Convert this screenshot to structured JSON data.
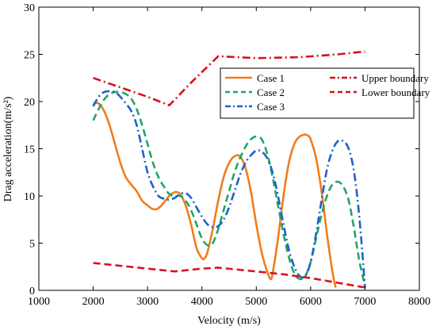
{
  "chart_data": {
    "type": "line",
    "title": "",
    "xlabel": "Velocity (m/s)",
    "ylabel": "Drag acceleration(m/s²)",
    "xlim": [
      1000,
      8000
    ],
    "ylim": [
      0,
      30
    ],
    "xticks": [
      1000,
      2000,
      3000,
      4000,
      5000,
      6000,
      7000,
      8000
    ],
    "yticks": [
      0,
      5,
      10,
      15,
      20,
      25,
      30
    ],
    "grid": false,
    "legend_placement": "top-right",
    "series": [
      {
        "name": "Case 1",
        "color": "#F07D1C",
        "dash": "solid",
        "x": [
          2000,
          2100,
          2200,
          2300,
          2400,
          2500,
          2600,
          2700,
          2800,
          2900,
          3000,
          3100,
          3200,
          3300,
          3400,
          3500,
          3600,
          3700,
          3800,
          3900,
          4000,
          4050,
          4100,
          4200,
          4300,
          4400,
          4500,
          4600,
          4700,
          4800,
          4900,
          5000,
          5100,
          5200,
          5260,
          5300,
          5400,
          5500,
          5600,
          5700,
          5800,
          5900,
          5950,
          6000,
          6100,
          6200,
          6300,
          6400,
          6460
        ],
        "y": [
          19.8,
          19.8,
          19.0,
          17.5,
          15.5,
          13.5,
          12.0,
          11.2,
          10.5,
          9.5,
          9.0,
          8.6,
          8.7,
          9.3,
          10.0,
          10.4,
          10.2,
          9.0,
          7.0,
          4.5,
          3.4,
          3.4,
          4.0,
          6.5,
          9.5,
          12.0,
          13.5,
          14.2,
          14.2,
          13.0,
          10.5,
          7.0,
          4.0,
          2.0,
          1.2,
          1.8,
          5.5,
          10.0,
          13.5,
          15.5,
          16.3,
          16.5,
          16.4,
          16.0,
          14.0,
          10.5,
          6.0,
          2.0,
          0.3
        ]
      },
      {
        "name": "Case 2",
        "color": "#21A664",
        "dash": "dashed",
        "x": [
          2000,
          2100,
          2200,
          2300,
          2400,
          2500,
          2600,
          2700,
          2800,
          2900,
          3000,
          3100,
          3200,
          3300,
          3400,
          3500,
          3600,
          3700,
          3800,
          3900,
          4000,
          4100,
          4200,
          4300,
          4400,
          4500,
          4600,
          4700,
          4800,
          4900,
          5000,
          5100,
          5200,
          5300,
          5400,
          5500,
          5600,
          5700,
          5800,
          5900,
          6000,
          6100,
          6200,
          6300,
          6400,
          6500,
          6600,
          6700,
          6800,
          6900,
          7000
        ],
        "y": [
          18.0,
          19.2,
          20.2,
          20.8,
          21.0,
          21.0,
          20.8,
          20.3,
          19.2,
          17.5,
          15.5,
          13.5,
          12.0,
          11.0,
          10.2,
          10.0,
          10.0,
          9.5,
          8.5,
          7.0,
          5.5,
          4.8,
          5.0,
          6.5,
          8.5,
          10.5,
          12.5,
          14.0,
          15.2,
          16.0,
          16.3,
          16.0,
          14.5,
          12.0,
          9.0,
          6.0,
          3.5,
          1.8,
          1.2,
          1.5,
          3.0,
          5.5,
          8.0,
          10.0,
          11.2,
          11.5,
          11.0,
          9.5,
          6.5,
          3.0,
          0.5
        ]
      },
      {
        "name": "Case 3",
        "color": "#1F62C8",
        "dash": "dashdot",
        "x": [
          2000,
          2100,
          2200,
          2300,
          2400,
          2500,
          2600,
          2700,
          2800,
          2900,
          3000,
          3100,
          3200,
          3300,
          3400,
          3500,
          3600,
          3700,
          3800,
          3900,
          4000,
          4100,
          4200,
          4300,
          4400,
          4500,
          4600,
          4700,
          4800,
          4900,
          5000,
          5100,
          5200,
          5300,
          5400,
          5500,
          5600,
          5700,
          5800,
          5900,
          6000,
          6100,
          6200,
          6300,
          6400,
          6500,
          6600,
          6700,
          6800,
          6900,
          7000
        ],
        "y": [
          19.5,
          20.5,
          21.0,
          21.1,
          21.0,
          20.5,
          19.8,
          19.0,
          17.5,
          15.0,
          12.5,
          11.0,
          10.0,
          9.7,
          9.6,
          9.8,
          10.2,
          10.3,
          9.8,
          8.8,
          7.8,
          7.0,
          6.7,
          6.8,
          7.5,
          8.8,
          10.5,
          12.2,
          13.5,
          14.3,
          14.8,
          14.7,
          14.0,
          12.5,
          10.0,
          7.0,
          4.3,
          2.5,
          1.5,
          1.5,
          3.0,
          6.0,
          9.5,
          12.8,
          14.8,
          15.8,
          15.8,
          15.0,
          12.5,
          7.5,
          0.3
        ]
      },
      {
        "name": "Upper boundary",
        "color": "#D8121E",
        "dash": "dashdot",
        "x": [
          2000,
          2500,
          3000,
          3400,
          3800,
          4300,
          5000,
          5800,
          6500,
          7000
        ],
        "y": [
          22.5,
          21.5,
          20.5,
          19.6,
          22.0,
          24.8,
          24.6,
          24.7,
          25.0,
          25.3
        ]
      },
      {
        "name": "Lower boundary",
        "color": "#D8121E",
        "dash": "dashed",
        "x": [
          2000,
          2500,
          3000,
          3500,
          4000,
          4300,
          5000,
          5500,
          6000,
          6500,
          7000
        ],
        "y": [
          2.9,
          2.6,
          2.3,
          2.0,
          2.3,
          2.4,
          2.0,
          1.7,
          1.3,
          0.8,
          0.3
        ]
      }
    ]
  }
}
